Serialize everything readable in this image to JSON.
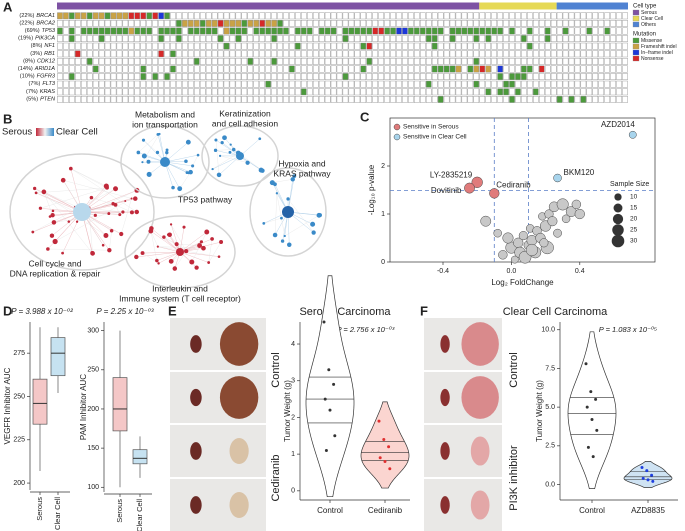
{
  "panel_letters": [
    "A",
    "B",
    "C",
    "D",
    "E",
    "F"
  ],
  "oncoprint": {
    "columns": 96,
    "cell_type": {
      "title": "Cell type",
      "groups": [
        {
          "name": "Serous",
          "color": "#7d52a3",
          "count": 71
        },
        {
          "name": "Clear Cell",
          "color": "#e6d955",
          "count": 13
        },
        {
          "name": "Others",
          "color": "#4f82d2",
          "count": 12
        }
      ]
    },
    "mutation_title": "Mutation",
    "mutation_types": [
      {
        "name": "Missense",
        "color": "#4c9a3c"
      },
      {
        "name": "Frameshift indel",
        "color": "#c9a245"
      },
      {
        "name": "In−frame indel",
        "color": "#1d38d8"
      },
      {
        "name": "Nonsense",
        "color": "#d62828"
      }
    ],
    "genes": [
      {
        "pct": "(22%)",
        "gene": "BRCA1",
        "row": "1101101101113330320"
      },
      {
        "pct": "(22%)",
        "gene": "BRCA2",
        "row": "....................011101131110113110"
      },
      {
        "pct": "(69%)",
        "gene": "TP53",
        "row": "0.0.000000001000.0000.00000.1000.000000.000.000.00000330022000000.000000000.0..0..0..0...0..0"
      },
      {
        "pct": "(19%)",
        "gene": "PIK3CA",
        "row": "..0....0.........0..0......0..0.....0...........0.............00..0...0.0.....0...0"
      },
      {
        "pct": "(8%)",
        "gene": "NF1",
        "row": "............................0...........0..........03..........0...............0"
      },
      {
        "pct": "(3%)",
        "gene": "RB1",
        "row": "...3.............3.0"
      },
      {
        "pct": "(8%)",
        "gene": "CDK12",
        "row": ".....0.................0........0...0...............0.................0"
      },
      {
        "pct": "(14%)",
        "gene": "ARID1A",
        "row": "......0.......0....0...................0...........0...........00001.0131.2...00.3"
      },
      {
        "pct": "(10%)",
        "gene": "FGFR3",
        "row": "..0...........0.0.0.............................0.........................0.000"
      },
      {
        "pct": "(7%)",
        "gene": "FLT3",
        "row": "...................................0..........................0.......0....00"
      },
      {
        "pct": "(7%)",
        "gene": "KRAS",
        "row": ".........................................0..............................0.00.0..0"
      },
      {
        "pct": "(5%)",
        "gene": "PTEN",
        "row": "................................................................0...........0.......0.0.0"
      }
    ]
  },
  "network": {
    "legend": [
      "Serous",
      "Clear Cell"
    ],
    "clusters": [
      {
        "label": [
          "Cell cycle and",
          "DNA replication & repair"
        ]
      },
      {
        "label": [
          "Metabolism and",
          "ion transportation"
        ]
      },
      {
        "label": [
          "Keratinization",
          "and cell adhesion"
        ]
      },
      {
        "label": [
          "Hypoxia and",
          "KRAS pathway"
        ]
      },
      {
        "label": [
          "Interleukin and",
          "Immune system (T cell receptor)"
        ]
      },
      {
        "label": [
          "TP53 pathway"
        ]
      }
    ]
  },
  "chart_data": [
    {
      "type": "scatter",
      "xlabel": "Log₂ FoldChange",
      "ylabel": "-Log₁₀ p-value",
      "xlim": [
        -0.71,
        0.84
      ],
      "ylim": [
        0,
        3.0
      ],
      "xticks": [
        -0.4,
        {
          "value": 0,
          "label": "0.0"
        },
        0.4
      ],
      "yticks": [
        0,
        1,
        2
      ],
      "hlines": [
        1.49
      ],
      "vlines": [
        -0.1,
        0.1
      ],
      "legend": "top-left",
      "size_legend": {
        "title": "Sample Size",
        "values": [
          10,
          15,
          20,
          25,
          30
        ]
      },
      "series": [
        {
          "name": "Sensitive in Serous",
          "color": "#e07b7b",
          "x": [
            -0.2,
            -0.245,
            -0.1
          ],
          "y": [
            1.66,
            1.54,
            1.43
          ],
          "size": [
            22,
            20,
            18
          ],
          "labels": [
            "LY-2835219",
            "Dovitinib",
            "Cediranib"
          ]
        },
        {
          "name": "Sensitive in Clear Cell",
          "color": "#a8d4ec",
          "x": [
            0.27,
            0.71
          ],
          "y": [
            1.75,
            2.65
          ],
          "size": [
            12,
            10
          ],
          "labels": [
            "BKM120",
            "AZD2014"
          ]
        },
        {
          "color": "#c8c8c8",
          "x": [
            -0.15,
            -0.08,
            -0.05,
            0.0,
            0.02,
            0.04,
            0.05,
            0.07,
            0.08,
            0.1,
            0.11,
            0.12,
            0.14,
            0.15,
            0.17,
            0.18,
            0.2,
            0.21,
            0.22,
            0.24,
            0.25,
            0.27,
            0.3,
            0.32,
            0.35,
            0.38,
            0.4,
            0.12,
            0.19,
            -0.02
          ],
          "y": [
            0.85,
            0.6,
            0.15,
            0.3,
            0.05,
            0.4,
            0.2,
            0.55,
            0.1,
            0.35,
            0.7,
            0.45,
            0.2,
            0.65,
            0.5,
            0.95,
            0.75,
            0.3,
            1.0,
            0.85,
            1.15,
            0.6,
            1.2,
            0.9,
            1.05,
            1.2,
            1.0,
            0.25,
            0.4,
            0.5
          ],
          "size": [
            20,
            12,
            15,
            25,
            10,
            18,
            22,
            14,
            28,
            16,
            12,
            20,
            24,
            15,
            18,
            11,
            22,
            30,
            14,
            17,
            19,
            13,
            25,
            12,
            20,
            15,
            18,
            26,
            14,
            21
          ]
        }
      ]
    },
    {
      "type": "box",
      "ylabel": "VEGFR Inhibitor AUC",
      "annotation": "P = 3.988 x 10⁻⁰²",
      "categories": [
        "Serous",
        "Clear Cell"
      ],
      "ylim": [
        196,
        293
      ],
      "yticks": [
        200,
        225,
        250,
        275
      ],
      "boxes": [
        {
          "min": 207,
          "q1": 234,
          "median": 246,
          "q3": 260,
          "max": 290,
          "color": "#f4c7c7"
        },
        {
          "min": 252,
          "q1": 262,
          "median": 275,
          "q3": 284,
          "max": 290,
          "color": "#c6e2f1"
        }
      ]
    },
    {
      "type": "box",
      "ylabel": "PAM Inhibitor AUC",
      "annotation": "P = 2.25 x 10⁻⁰³",
      "categories": [
        "Serous",
        "Clear Cell"
      ],
      "ylim": [
        94,
        311
      ],
      "yticks": [
        100,
        150,
        200,
        250,
        300
      ],
      "boxes": [
        {
          "min": 100,
          "q1": 172,
          "median": 200,
          "q3": 240,
          "max": 300,
          "color": "#f4c7c7"
        },
        {
          "min": 112,
          "q1": 130,
          "median": 137,
          "q3": 148,
          "max": 165,
          "color": "#c6e2f1"
        }
      ]
    },
    {
      "type": "violin",
      "title": "Serous Carcinoma",
      "annotation": "P = 2.756 x 10⁻⁰³",
      "ylabel": "Tumor Weight (g)",
      "categories": [
        "Control",
        "Cediranib"
      ],
      "ylim": [
        -0.25,
        4.6
      ],
      "yticks": [
        0,
        1,
        2,
        3,
        4
      ],
      "photo_labels": [
        "Control",
        "Cediranib"
      ],
      "series": [
        {
          "color": "#ffffff",
          "point_color": "#333333",
          "values": [
            4.6,
            3.3,
            2.9,
            2.5,
            2.2,
            1.5,
            1.1
          ]
        },
        {
          "color": "#fbd5d0",
          "point_color": "#e03030",
          "values": [
            1.9,
            1.4,
            1.2,
            0.9,
            0.8,
            0.6
          ]
        }
      ]
    },
    {
      "type": "violin",
      "title": "Clear Cell Carcinoma",
      "annotation": "P = 1.083 x 10⁻⁰⁵",
      "ylabel": "Tumor Weight (g)",
      "categories": [
        "Control",
        "AZD8835"
      ],
      "ylim": [
        -1,
        10.5
      ],
      "yticks": [
        {
          "value": 0,
          "label": "0.0"
        },
        2.5,
        {
          "value": 5,
          "label": "5.0"
        },
        7.5,
        {
          "value": 10,
          "label": "10.0"
        }
      ],
      "photo_labels": [
        "Control",
        "PI3K inhibitor"
      ],
      "series": [
        {
          "color": "#ffffff",
          "point_color": "#333333",
          "values": [
            7.8,
            6.0,
            5.5,
            5.0,
            4.2,
            3.5,
            2.4,
            1.8
          ]
        },
        {
          "color": "#cfe3f3",
          "point_color": "#1f3fe0",
          "values": [
            1.1,
            0.9,
            0.6,
            0.4,
            0.3,
            0.2
          ]
        }
      ]
    }
  ]
}
